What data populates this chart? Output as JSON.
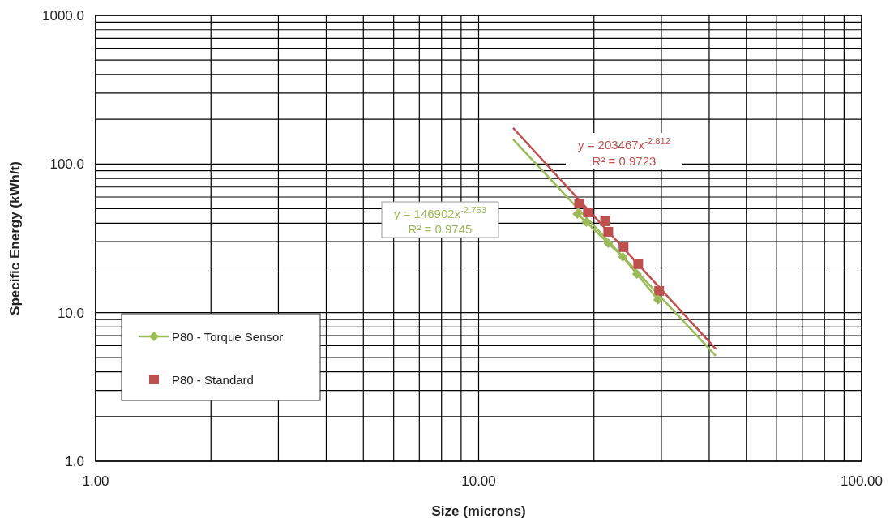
{
  "chart_data": {
    "type": "scatter",
    "xlabel": "Size (microns)",
    "ylabel": "Specific Energy (kWh/t)",
    "log": "xy",
    "grid": true,
    "legend": "bottom left",
    "xlim": [
      1,
      100
    ],
    "xticks": [
      {
        "value": 1,
        "label": "1.00"
      },
      {
        "value": 10,
        "label": "10.00"
      },
      {
        "value": 100,
        "label": "100.00"
      }
    ],
    "ylim": [
      1,
      1000
    ],
    "yticks": [
      {
        "value": 1,
        "label": "1.0"
      },
      {
        "value": 10,
        "label": "10.0"
      },
      {
        "value": 100,
        "label": "100.0"
      },
      {
        "value": 1000,
        "label": "1000.0"
      }
    ],
    "series": [
      {
        "name": "P80 - Torque Sensor",
        "type": "line",
        "marker": "diamond",
        "color": "#9bbb59",
        "x": [
          18.1,
          19.1,
          21.8,
          23.8,
          25.9,
          29.4
        ],
        "values": [
          46.1,
          40.7,
          29.3,
          23.7,
          18.2,
          12.2
        ]
      },
      {
        "name": "P80 - Standard",
        "marker": "square",
        "color": "#c0504d",
        "x": [
          18.3,
          19.3,
          21.4,
          21.8,
          23.9,
          26.1,
          29.6
        ],
        "values": [
          54.3,
          47.3,
          41.2,
          35.0,
          27.6,
          21.2,
          14.0
        ]
      },
      {
        "type": "line",
        "marker": "none",
        "color": "#c0504d",
        "x": [
          12.3,
          41.6
        ],
        "values": [
          175,
          5.7
        ]
      },
      {
        "type": "line",
        "marker": "none",
        "color": "#9bbb59",
        "x": [
          12.3,
          41.6
        ],
        "values": [
          146.7,
          5.13
        ]
      }
    ],
    "annotations": [
      "y = 203467x$^{-2.812}$",
      "R² = 0.9723",
      "y = 146902x$^{-2.753}$",
      "R² = 0.9745"
    ]
  }
}
